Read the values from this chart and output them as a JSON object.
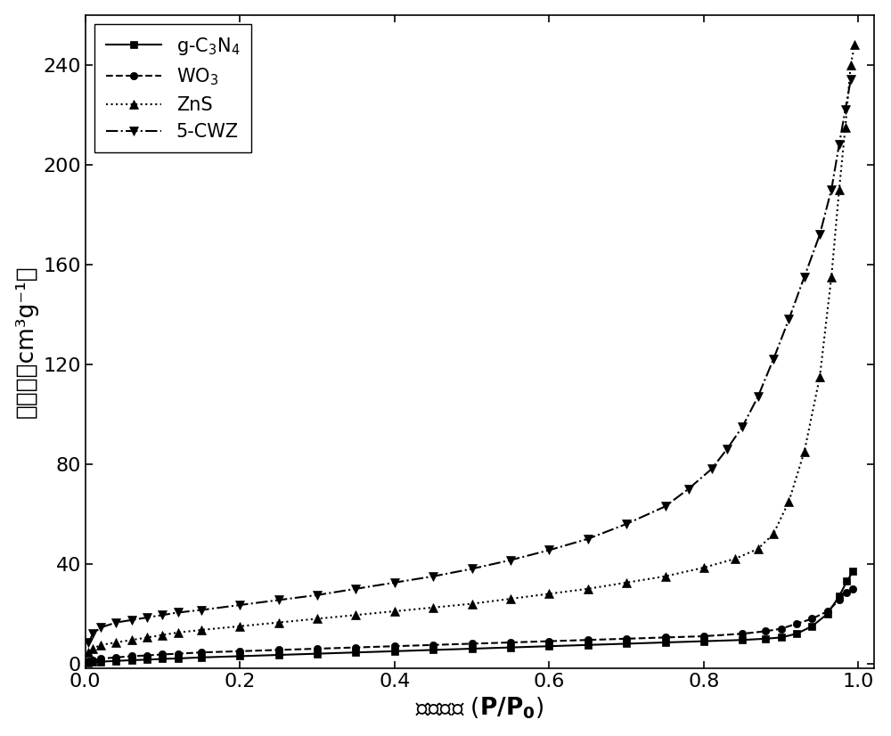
{
  "title": "",
  "xlim": [
    0.0,
    1.02
  ],
  "ylim": [
    -2,
    260
  ],
  "yticks": [
    0,
    40,
    80,
    120,
    160,
    200,
    240
  ],
  "xticks": [
    0.0,
    0.2,
    0.4,
    0.6,
    0.8,
    1.0
  ],
  "color": "#000000",
  "background": "#ffffff",
  "series": [
    {
      "label": "g-C$_3$N$_4$",
      "linestyle": "-",
      "marker": "s",
      "markersize": 6,
      "color": "#000000",
      "x": [
        0.004,
        0.01,
        0.02,
        0.04,
        0.06,
        0.08,
        0.1,
        0.12,
        0.15,
        0.2,
        0.25,
        0.3,
        0.35,
        0.4,
        0.45,
        0.5,
        0.55,
        0.6,
        0.65,
        0.7,
        0.75,
        0.8,
        0.85,
        0.88,
        0.9,
        0.92,
        0.94,
        0.96,
        0.975,
        0.985,
        0.993
      ],
      "y": [
        0.3,
        0.5,
        0.8,
        1.1,
        1.4,
        1.6,
        1.9,
        2.1,
        2.5,
        3.0,
        3.5,
        4.0,
        4.5,
        5.0,
        5.5,
        6.0,
        6.5,
        7.0,
        7.5,
        8.0,
        8.5,
        9.0,
        9.5,
        10.0,
        10.5,
        12.0,
        15.0,
        20.0,
        27.0,
        33.0,
        37.0
      ]
    },
    {
      "label": "WO$_3$",
      "linestyle": "--",
      "marker": "o",
      "markersize": 6,
      "color": "#000000",
      "x": [
        0.004,
        0.01,
        0.02,
        0.04,
        0.06,
        0.08,
        0.1,
        0.12,
        0.15,
        0.2,
        0.25,
        0.3,
        0.35,
        0.4,
        0.45,
        0.5,
        0.55,
        0.6,
        0.65,
        0.7,
        0.75,
        0.8,
        0.85,
        0.88,
        0.9,
        0.92,
        0.94,
        0.96,
        0.975,
        0.985,
        0.993
      ],
      "y": [
        1.0,
        1.5,
        2.0,
        2.5,
        3.0,
        3.3,
        3.7,
        4.0,
        4.5,
        5.0,
        5.5,
        6.0,
        6.5,
        7.0,
        7.5,
        8.0,
        8.5,
        9.0,
        9.5,
        10.0,
        10.5,
        11.0,
        12.0,
        13.0,
        14.0,
        16.0,
        18.0,
        21.0,
        25.5,
        28.5,
        30.0
      ]
    },
    {
      "label": "ZnS",
      "linestyle": ":",
      "marker": "^",
      "markersize": 7,
      "color": "#000000",
      "x": [
        0.004,
        0.01,
        0.02,
        0.04,
        0.06,
        0.08,
        0.1,
        0.12,
        0.15,
        0.2,
        0.25,
        0.3,
        0.35,
        0.4,
        0.45,
        0.5,
        0.55,
        0.6,
        0.65,
        0.7,
        0.75,
        0.8,
        0.84,
        0.87,
        0.89,
        0.91,
        0.93,
        0.95,
        0.965,
        0.975,
        0.983,
        0.99,
        0.995
      ],
      "y": [
        4.5,
        6.0,
        7.5,
        8.5,
        9.5,
        10.5,
        11.5,
        12.5,
        13.5,
        15.0,
        16.5,
        18.0,
        19.5,
        21.0,
        22.5,
        24.0,
        26.0,
        28.0,
        30.0,
        32.5,
        35.0,
        38.5,
        42.0,
        46.0,
        52.0,
        65.0,
        85.0,
        115.0,
        155.0,
        190.0,
        215.0,
        240.0,
        248.0
      ]
    },
    {
      "label": "5-CWZ",
      "linestyle": "-.",
      "marker": "v",
      "markersize": 7,
      "color": "#000000",
      "x": [
        0.004,
        0.01,
        0.02,
        0.04,
        0.06,
        0.08,
        0.1,
        0.12,
        0.15,
        0.2,
        0.25,
        0.3,
        0.35,
        0.4,
        0.45,
        0.5,
        0.55,
        0.6,
        0.65,
        0.7,
        0.75,
        0.78,
        0.81,
        0.83,
        0.85,
        0.87,
        0.89,
        0.91,
        0.93,
        0.95,
        0.965,
        0.975,
        0.983,
        0.99
      ],
      "y": [
        8.5,
        12.0,
        14.5,
        16.5,
        17.5,
        18.5,
        19.5,
        20.5,
        21.5,
        23.5,
        25.5,
        27.5,
        30.0,
        32.5,
        35.0,
        38.0,
        41.5,
        45.5,
        50.0,
        56.0,
        63.0,
        70.0,
        78.0,
        86.0,
        95.0,
        107.0,
        122.0,
        138.0,
        155.0,
        172.0,
        190.0,
        208.0,
        222.0,
        234.0
      ]
    }
  ],
  "legend_loc": "upper left",
  "legend_fontsize": 15,
  "tick_fontsize": 16,
  "axis_label_fontsize": 19,
  "linewidth": 1.5
}
